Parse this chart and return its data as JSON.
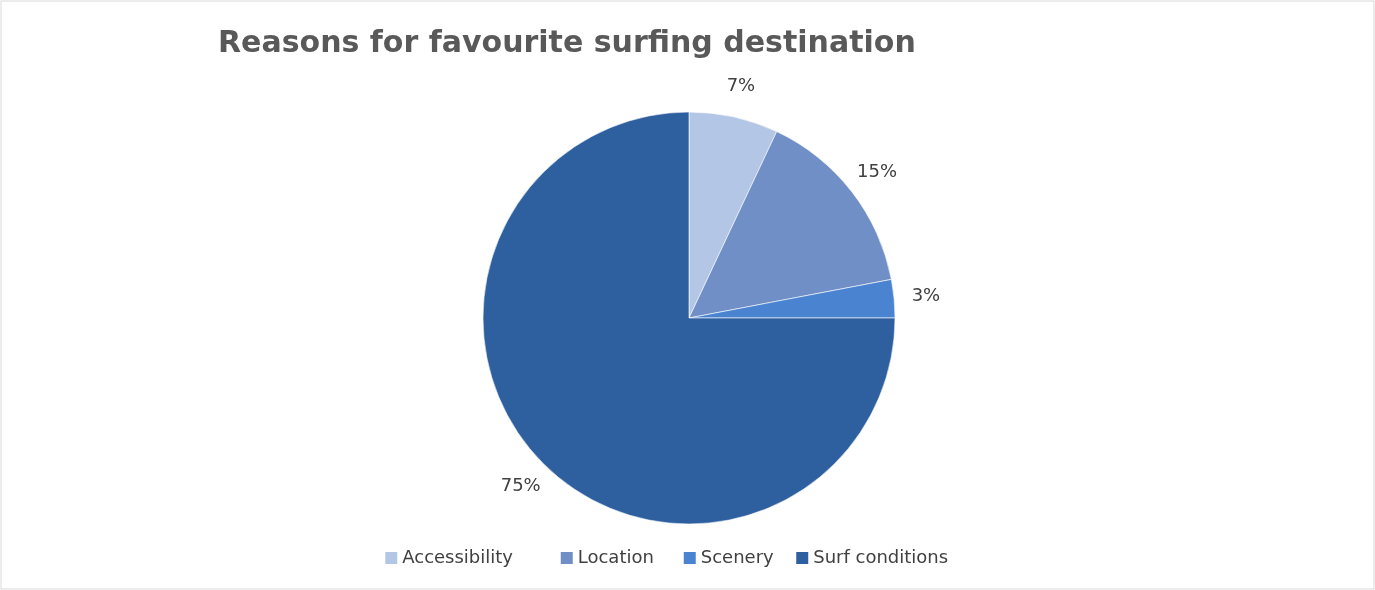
{
  "chart_data": {
    "type": "pie",
    "title": "Reasons for favourite surfing destination",
    "categories": [
      "Accessibility",
      "Location",
      "Scenery",
      "Surf conditions"
    ],
    "values": [
      7,
      15,
      3,
      75
    ],
    "value_labels": [
      "7%",
      "15%",
      "3%",
      "75%"
    ],
    "colors": [
      "#b4c6e6",
      "#6f8fc6",
      "#4a83d0",
      "#2e5f9f"
    ],
    "legend": "bottom"
  }
}
